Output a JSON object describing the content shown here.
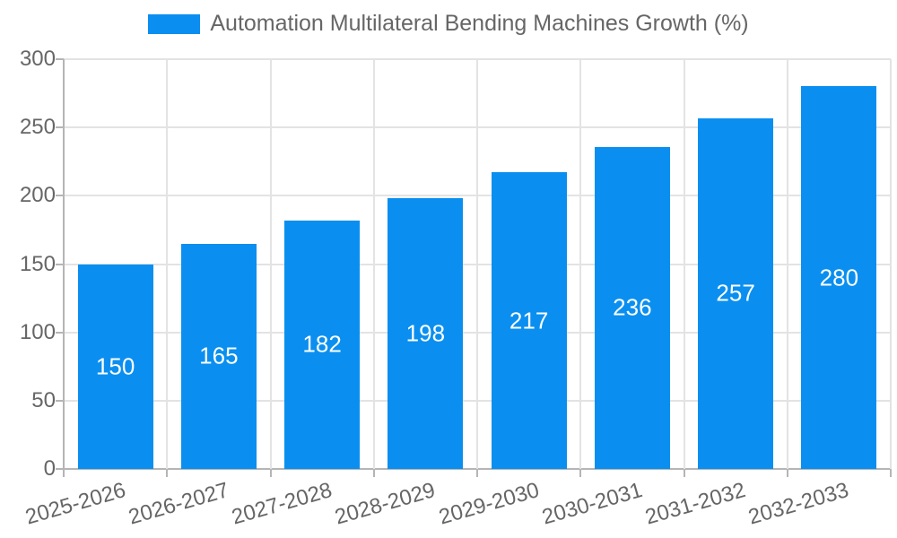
{
  "chart_data": {
    "type": "bar",
    "title": "",
    "legend_label": "Automation Multilateral Bending Machines Growth (%)",
    "legend_position": "top",
    "categories": [
      "2025-2026",
      "2026-2027",
      "2027-2028",
      "2028-2029",
      "2029-2030",
      "2030-2031",
      "2031-2032",
      "2032-2033"
    ],
    "values": [
      150,
      165,
      182,
      198,
      217,
      236,
      257,
      280
    ],
    "bar_value_labels": [
      "150",
      "165",
      "182",
      "198",
      "217",
      "236",
      "257",
      "280"
    ],
    "xlabel": "",
    "ylabel": "",
    "ylim": [
      0,
      300
    ],
    "yticks": [
      0,
      50,
      100,
      150,
      200,
      250,
      300
    ],
    "grid": "on",
    "bar_label_position": "inside-center"
  },
  "colors": {
    "bar": "#0a8ff0",
    "grid": "#e3e3e3",
    "axis": "#b5b5b5",
    "tick_text": "#666666",
    "legend_text": "#666666",
    "bar_label": "#ffffff",
    "background": "#ffffff"
  }
}
